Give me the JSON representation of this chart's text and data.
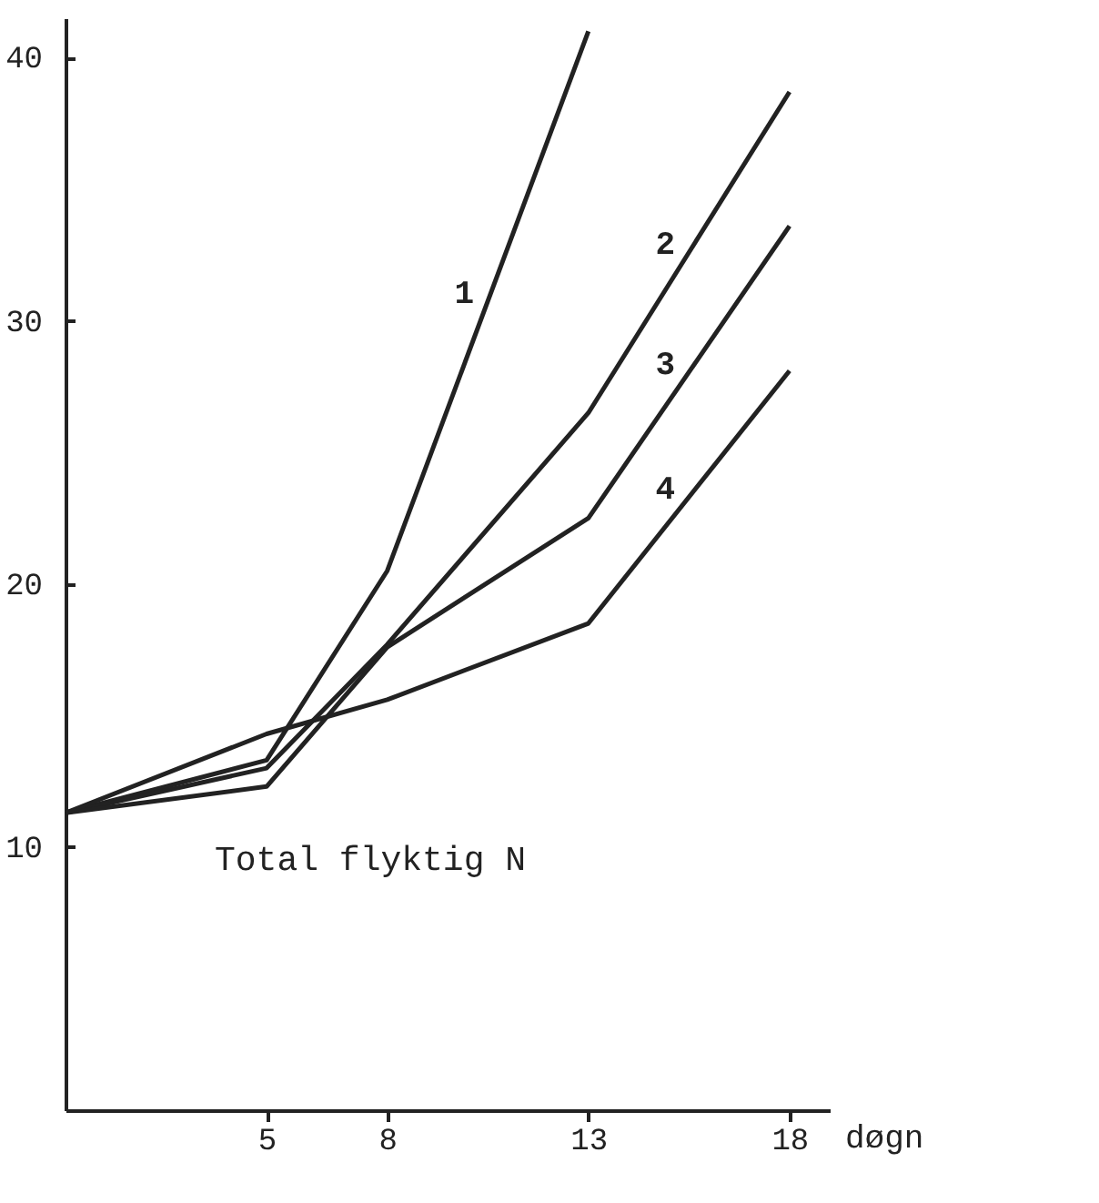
{
  "chart_data": {
    "type": "line",
    "title": "Total flyktig N",
    "xlabel": "døgn",
    "x": [
      0,
      5,
      8,
      13,
      18
    ],
    "series": [
      {
        "name": "1",
        "color": "#222222",
        "values": [
          11.3,
          13.3,
          20.5,
          41.0,
          null
        ]
      },
      {
        "name": "2",
        "color": "#222222",
        "values": [
          11.3,
          13.0,
          17.7,
          26.5,
          38.7
        ]
      },
      {
        "name": "3",
        "color": "#222222",
        "values": [
          11.3,
          12.3,
          17.6,
          22.5,
          33.6
        ]
      },
      {
        "name": "4",
        "color": "#222222",
        "values": [
          11.3,
          14.3,
          15.6,
          18.5,
          28.1
        ]
      }
    ],
    "xlim": [
      0,
      19
    ],
    "xticks": [
      5,
      8,
      13,
      18
    ],
    "ylim": [
      0,
      41.5
    ],
    "yticks": [
      10,
      20,
      30,
      40
    ],
    "grid": false,
    "legend": false,
    "marker": "none",
    "line_style": "solid"
  }
}
